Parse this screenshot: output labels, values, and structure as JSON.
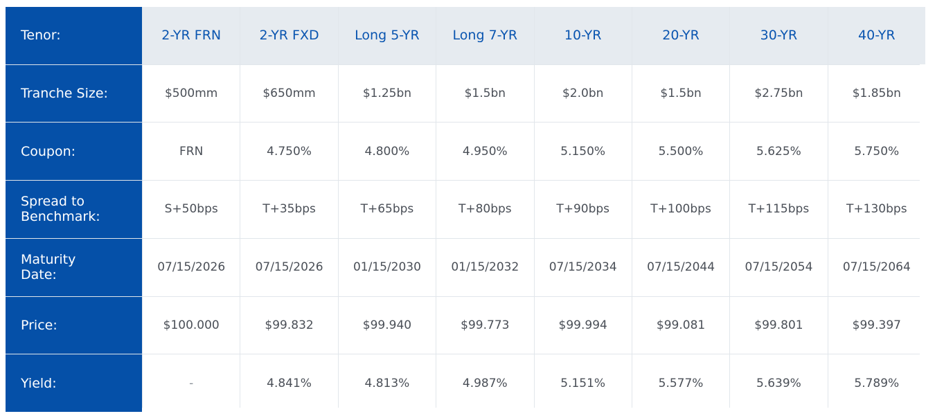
{
  "table": {
    "header_label": "Tenor:",
    "tenors": [
      "2-YR FRN",
      "2-YR FXD",
      "Long 5-YR",
      "Long 7-YR",
      "10-YR",
      "20-YR",
      "30-YR",
      "40-YR"
    ],
    "rows": [
      {
        "label": "Tranche Size:",
        "values": [
          "$500mm",
          "$650mm",
          "$1.25bn",
          "$1.5bn",
          "$2.0bn",
          "$1.5bn",
          "$2.75bn",
          "$1.85bn"
        ]
      },
      {
        "label": "Coupon:",
        "values": [
          "FRN",
          "4.750%",
          "4.800%",
          "4.950%",
          "5.150%",
          "5.500%",
          "5.625%",
          "5.750%"
        ]
      },
      {
        "label": "Spread to\nBenchmark:",
        "values": [
          "S+50bps",
          "T+35bps",
          "T+65bps",
          "T+80bps",
          "T+90bps",
          "T+100bps",
          "T+115bps",
          "T+130bps"
        ]
      },
      {
        "label": "Maturity\nDate:",
        "values": [
          "07/15/2026",
          "07/15/2026",
          "01/15/2030",
          "01/15/2032",
          "07/15/2034",
          "07/15/2044",
          "07/15/2054",
          "07/15/2064"
        ]
      },
      {
        "label": "Price:",
        "values": [
          "$100.000",
          "$99.832",
          "$99.940",
          "$99.773",
          "$99.994",
          "$99.081",
          "$99.801",
          "$99.397"
        ]
      },
      {
        "label": "Yield:",
        "values": [
          "-",
          "4.841%",
          "4.813%",
          "4.987%",
          "5.151%",
          "5.577%",
          "5.639%",
          "5.789%"
        ]
      }
    ]
  },
  "colors": {
    "label_bg": "#0550a8",
    "header_bg": "#e6ebf0",
    "header_text": "#0a55b0",
    "cell_text": "#4a4f57",
    "grid_line": "#e1e6eb"
  }
}
